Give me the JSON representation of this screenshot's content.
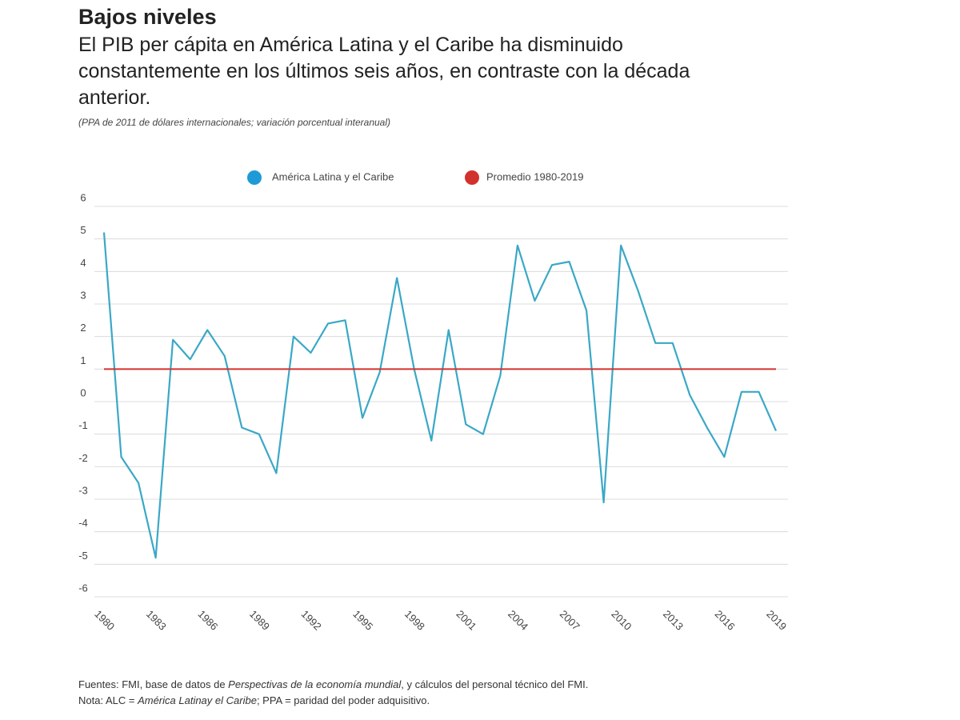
{
  "chart_data": {
    "type": "line",
    "title": "Bajos niveles",
    "subtitle": "El PIB per cápita en América Latina y el Caribe ha disminuido constantemente en los últimos seis años, en contraste con la década anterior.",
    "units_note": "(PPA de 2011 de dólares internacionales; variación porcentual interanual)",
    "x": [
      1980,
      1981,
      1982,
      1983,
      1984,
      1985,
      1986,
      1987,
      1988,
      1989,
      1990,
      1991,
      1992,
      1993,
      1994,
      1995,
      1996,
      1997,
      1998,
      1999,
      2000,
      2001,
      2002,
      2003,
      2004,
      2005,
      2006,
      2007,
      2008,
      2009,
      2010,
      2011,
      2012,
      2013,
      2014,
      2015,
      2016,
      2017,
      2018,
      2019
    ],
    "series": [
      {
        "name": "América Latina y el Caribe",
        "color": "#3aa8c6",
        "values": [
          5.2,
          -1.7,
          -2.5,
          -4.8,
          1.9,
          1.3,
          2.2,
          1.4,
          -0.8,
          -1.0,
          -2.2,
          2.0,
          1.5,
          2.4,
          2.5,
          -0.5,
          0.9,
          3.8,
          1.0,
          -1.2,
          2.2,
          -0.7,
          -1.0,
          0.8,
          4.8,
          3.1,
          4.2,
          4.3,
          2.8,
          -3.1,
          4.8,
          3.4,
          1.8,
          1.8,
          0.2,
          -0.8,
          -1.7,
          0.3,
          0.3,
          -0.9
        ]
      }
    ],
    "reference_line": {
      "name": "Promedio 1980-2019",
      "value": 1,
      "color": "#d2322d"
    },
    "legend_colors": [
      "#1e9bd7",
      "#d2322d"
    ],
    "xlim": [
      1980,
      2019
    ],
    "xticks": [
      1980,
      1983,
      1986,
      1989,
      1992,
      1995,
      1998,
      2001,
      2004,
      2007,
      2010,
      2013,
      2016,
      2019
    ],
    "ylim": [
      -6,
      6
    ],
    "yticks": [
      -6,
      -5,
      -4,
      -3,
      -2,
      -1,
      0,
      1,
      2,
      3,
      4,
      5,
      6
    ],
    "grid": true,
    "footer": {
      "source": [
        "Fuentes: FMI, base de datos de ",
        "Perspectivas de la economía mundial",
        ", y cálculos del personal técnico del FMI."
      ],
      "note": [
        "Nota: ALC = ",
        "América Latinay el Caribe",
        "; PPA = paridad del poder adquisitivo."
      ]
    }
  }
}
